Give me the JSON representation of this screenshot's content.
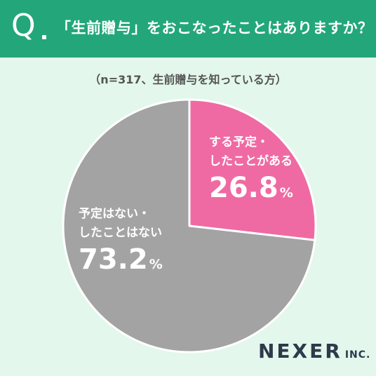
{
  "header": {
    "q_letter": "Q",
    "question": "「生前贈与」をおこなったことはありますか？"
  },
  "note": "（n=317、生前贈与を知っている方）",
  "chart_data": {
    "type": "pie",
    "n": 317,
    "unit": "%",
    "series": [
      {
        "label_line1": "する予定・",
        "label_line2": "したことがある",
        "value": 26.8,
        "value_text": "26.8",
        "color": "#ef6aa3"
      },
      {
        "label_line1": "予定はない・",
        "label_line2": "したことはない",
        "value": 73.2,
        "value_text": "73.2",
        "color": "#a3a3a3"
      }
    ]
  },
  "logo": {
    "main": "NEXER",
    "suffix": "INC."
  },
  "colors": {
    "header": "#23a77a",
    "background": "#e3f7ec",
    "outline": "#ffffff"
  }
}
